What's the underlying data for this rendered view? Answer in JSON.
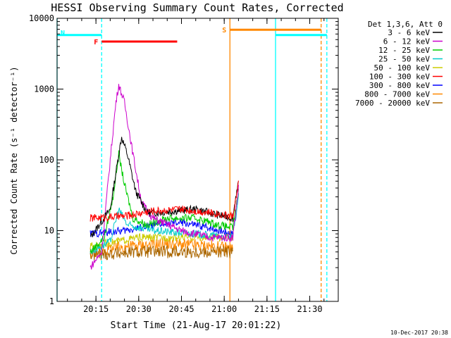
{
  "chart_data": {
    "type": "line",
    "title": "HESSI Observing Summary Count Rates, Corrected",
    "xlabel": "Start Time (21-Aug-17 20:01:22)",
    "ylabel": "Corrected Count Rate (s⁻¹ detector⁻¹)",
    "y_scale": "log",
    "ylim": [
      1,
      10000
    ],
    "xlim": [
      "20:01:22",
      "21:40:00"
    ],
    "x_ticks": [
      "20:15",
      "20:30",
      "20:45",
      "21:00",
      "21:15",
      "21:30"
    ],
    "y_ticks": [
      "1",
      "10",
      "100",
      "1000",
      "10000"
    ],
    "grid": false,
    "legend_title": "Det 1,3,6, Att 0",
    "legend_position": "right",
    "footer_timestamp": "10-Dec-2017 20:38",
    "series": [
      {
        "name": "3 - 6 keV",
        "color": "#000000",
        "x": [
          "20:13:00",
          "20:20:00",
          "20:23:00",
          "20:24:00",
          "20:26:00",
          "20:29:00",
          "20:33:00",
          "20:37:00",
          "20:43:00",
          "20:50:00",
          "20:57:00",
          "21:03:00",
          "21:04:00",
          "21:05:00"
        ],
        "y": [
          8,
          20,
          120,
          210,
          120,
          35,
          18,
          18,
          19,
          20,
          17,
          15,
          30,
          45
        ]
      },
      {
        "name": "6 - 12 keV",
        "color": "#cc00cc",
        "x": [
          "20:13:00",
          "20:17:00",
          "20:20:00",
          "20:22:00",
          "20:23:00",
          "20:25:00",
          "20:28:00",
          "20:31:00",
          "20:35:00",
          "20:45:00",
          "20:55:00",
          "21:03:00",
          "21:05:00"
        ],
        "y": [
          3,
          5,
          100,
          650,
          1150,
          650,
          120,
          25,
          15,
          10,
          8,
          8,
          40
        ]
      },
      {
        "name": "12 - 25 keV",
        "color": "#00cc00",
        "x": [
          "20:13:00",
          "20:18:00",
          "20:21:00",
          "20:23:00",
          "20:25:00",
          "20:28:00",
          "20:33:00",
          "20:40:00",
          "20:50:00",
          "20:58:00",
          "21:03:00",
          "21:05:00"
        ],
        "y": [
          5,
          8,
          30,
          120,
          45,
          15,
          12,
          15,
          15,
          12,
          11,
          35
        ]
      },
      {
        "name": "25 - 50 keV",
        "color": "#00cccc",
        "x": [
          "20:13:00",
          "20:20:00",
          "20:23:00",
          "20:26:00",
          "20:35:00",
          "20:50:00",
          "21:03:00",
          "21:05:00"
        ],
        "y": [
          5,
          7,
          20,
          12,
          10,
          9,
          8,
          30
        ]
      },
      {
        "name": "50 - 100 keV",
        "color": "#cccc00",
        "x": [
          "20:13:00",
          "20:30:00",
          "20:50:00",
          "21:03:00"
        ],
        "y": [
          6,
          8,
          8,
          8
        ]
      },
      {
        "name": "100 - 300 keV",
        "color": "#ff0000",
        "x": [
          "20:13:00",
          "20:25:00",
          "20:35:00",
          "20:45:00",
          "20:55:00",
          "21:03:00",
          "21:05:00"
        ],
        "y": [
          15,
          16,
          19,
          20,
          18,
          16,
          45
        ]
      },
      {
        "name": "300 - 800 keV",
        "color": "#0000ff",
        "x": [
          "20:13:00",
          "20:25:00",
          "20:35:00",
          "20:45:00",
          "20:55:00",
          "21:03:00"
        ],
        "y": [
          9,
          10,
          12,
          13,
          11,
          9
        ]
      },
      {
        "name": "800 - 7000 keV",
        "color": "#ff8800",
        "x": [
          "20:13:00",
          "20:25:00",
          "20:40:00",
          "20:55:00",
          "21:03:00"
        ],
        "y": [
          5,
          6,
          6.5,
          6,
          5.5
        ]
      },
      {
        "name": "7000 - 20000 keV",
        "color": "#aa6600",
        "x": [
          "20:13:00",
          "20:30:00",
          "20:50:00",
          "21:03:00"
        ],
        "y": [
          4.5,
          5,
          5,
          5
        ]
      }
    ],
    "annotations": [
      {
        "label": "N",
        "color": "#00ffff",
        "kind": "night-bar",
        "segments": [
          [
            "20:01:22",
            "20:17:00"
          ],
          [
            "21:18:00",
            "21:36:00"
          ]
        ],
        "level": 5800
      },
      {
        "label": "F",
        "color": "#ff0000",
        "kind": "flare-bar",
        "segments": [
          [
            "20:17:00",
            "20:43:30"
          ]
        ],
        "level": 4700
      },
      {
        "label": "S",
        "color": "#ff8800",
        "kind": "saa-bar",
        "segments": [
          [
            "21:02:00",
            "21:34:00"
          ]
        ],
        "level": 6900
      }
    ],
    "vertical_lines": [
      {
        "x": "20:01:22",
        "color": "#00ffff",
        "style": "solid"
      },
      {
        "x": "20:17:00",
        "color": "#00ffff",
        "style": "dashed"
      },
      {
        "x": "21:02:00",
        "color": "#ff8800",
        "style": "solid"
      },
      {
        "x": "21:18:00",
        "color": "#00ffff",
        "style": "solid"
      },
      {
        "x": "21:34:00",
        "color": "#ff8800",
        "style": "dashed"
      },
      {
        "x": "21:36:00",
        "color": "#00ffff",
        "style": "dashed"
      }
    ]
  }
}
